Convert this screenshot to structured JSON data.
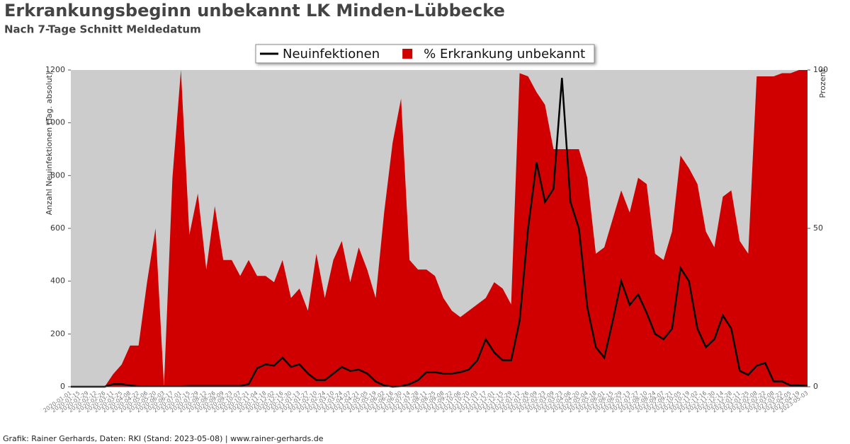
{
  "chart_data": {
    "type": "line-area",
    "title": "Erkrankungsbeginn unbekannt LK Minden-Lübbecke",
    "subtitle": "Nach 7-Tage Schnitt Meldedatum",
    "y_label": "Anzahl Neuinfektionen (Tag. absolut)",
    "y2_label": "Prozent",
    "footer": "Grafik: Rainer Gerhards, Daten: RKI (Stand: 2023-05-08) | www.rainer-gerhards.de",
    "x": [
      "2020-01-01",
      "2020-01-15",
      "2020-01-29",
      "2020-02-12",
      "2020-02-26",
      "2020-03-11",
      "2020-03-25",
      "2020-04-08",
      "2020-04-22",
      "2020-05-06",
      "2020-05-20",
      "2020-06-03",
      "2020-06-17",
      "2020-07-01",
      "2020-07-15",
      "2020-07-29",
      "2020-08-12",
      "2020-08-26",
      "2020-09-09",
      "2020-09-23",
      "2020-10-07",
      "2020-10-21",
      "2020-11-04",
      "2020-11-18",
      "2020-12-02",
      "2020-12-16",
      "2020-12-30",
      "2021-01-13",
      "2021-01-27",
      "2021-02-10",
      "2021-02-24",
      "2021-03-10",
      "2021-03-24",
      "2021-04-07",
      "2021-04-21",
      "2021-05-05",
      "2021-05-19",
      "2021-06-02",
      "2021-06-16",
      "2021-06-30",
      "2021-07-14",
      "2021-07-28",
      "2021-08-11",
      "2021-08-25",
      "2021-09-08",
      "2021-09-22",
      "2021-10-06",
      "2021-10-20",
      "2021-11-03",
      "2021-11-17",
      "2021-12-01",
      "2021-12-15",
      "2021-12-29",
      "2022-01-12",
      "2022-01-26",
      "2022-02-09",
      "2022-02-23",
      "2022-03-09",
      "2022-03-23",
      "2022-04-06",
      "2022-04-20",
      "2022-05-04",
      "2022-05-18",
      "2022-06-01",
      "2022-06-15",
      "2022-06-29",
      "2022-07-13",
      "2022-07-27",
      "2022-08-10",
      "2022-08-24",
      "2022-09-07",
      "2022-09-21",
      "2022-10-05",
      "2022-10-19",
      "2022-11-02",
      "2022-11-16",
      "2022-11-30",
      "2022-12-14",
      "2022-12-28",
      "2023-01-11",
      "2023-01-25",
      "2023-02-08",
      "2023-02-22",
      "2023-03-08",
      "2023-03-22",
      "2023-04-05",
      "2023-04-19",
      "2023-05-03"
    ],
    "series": [
      {
        "name": "Neuinfektionen",
        "color": "#000000",
        "values": [
          0,
          0,
          0,
          0,
          0,
          10,
          10,
          5,
          2,
          2,
          2,
          2,
          2,
          2,
          3,
          3,
          3,
          3,
          3,
          3,
          3,
          10,
          70,
          85,
          80,
          110,
          75,
          85,
          50,
          25,
          25,
          50,
          75,
          60,
          65,
          50,
          20,
          5,
          0,
          2,
          10,
          25,
          55,
          55,
          50,
          50,
          55,
          65,
          100,
          180,
          130,
          100,
          100,
          250,
          600,
          850,
          700,
          750,
          1170,
          700,
          600,
          300,
          150,
          110,
          250,
          400,
          310,
          350,
          280,
          200,
          180,
          220,
          450,
          400,
          220,
          150,
          180,
          270,
          220,
          60,
          45,
          80,
          90,
          20,
          20,
          5,
          5,
          3
        ]
      },
      {
        "name": "% Erkrankung unbekannt",
        "color": "#d00000",
        "axis": "y2",
        "values": [
          0,
          0,
          0,
          0,
          0,
          4,
          7,
          13,
          13,
          33,
          50,
          0,
          66,
          100,
          48,
          61,
          37,
          57,
          40,
          40,
          35,
          40,
          35,
          35,
          33,
          40,
          28,
          31,
          24,
          42,
          28,
          40,
          46,
          33,
          44,
          37,
          28,
          55,
          77,
          91,
          40,
          37,
          37,
          35,
          28,
          24,
          22,
          24,
          26,
          28,
          33,
          31,
          26,
          99,
          98,
          93,
          89,
          75,
          75,
          75,
          75,
          66,
          42,
          44,
          53,
          62,
          55,
          66,
          64,
          42,
          40,
          49,
          73,
          69,
          64,
          49,
          44,
          60,
          62,
          46,
          42,
          98,
          98,
          98,
          99,
          99,
          100,
          100
        ]
      }
    ],
    "ylim": [
      0,
      1200
    ],
    "yticks": [
      0,
      200,
      400,
      600,
      800,
      1000,
      1200
    ],
    "y2lim": [
      0,
      100
    ],
    "y2ticks": [
      0,
      50,
      100
    ],
    "background": "#cccccc",
    "legend": "top"
  }
}
